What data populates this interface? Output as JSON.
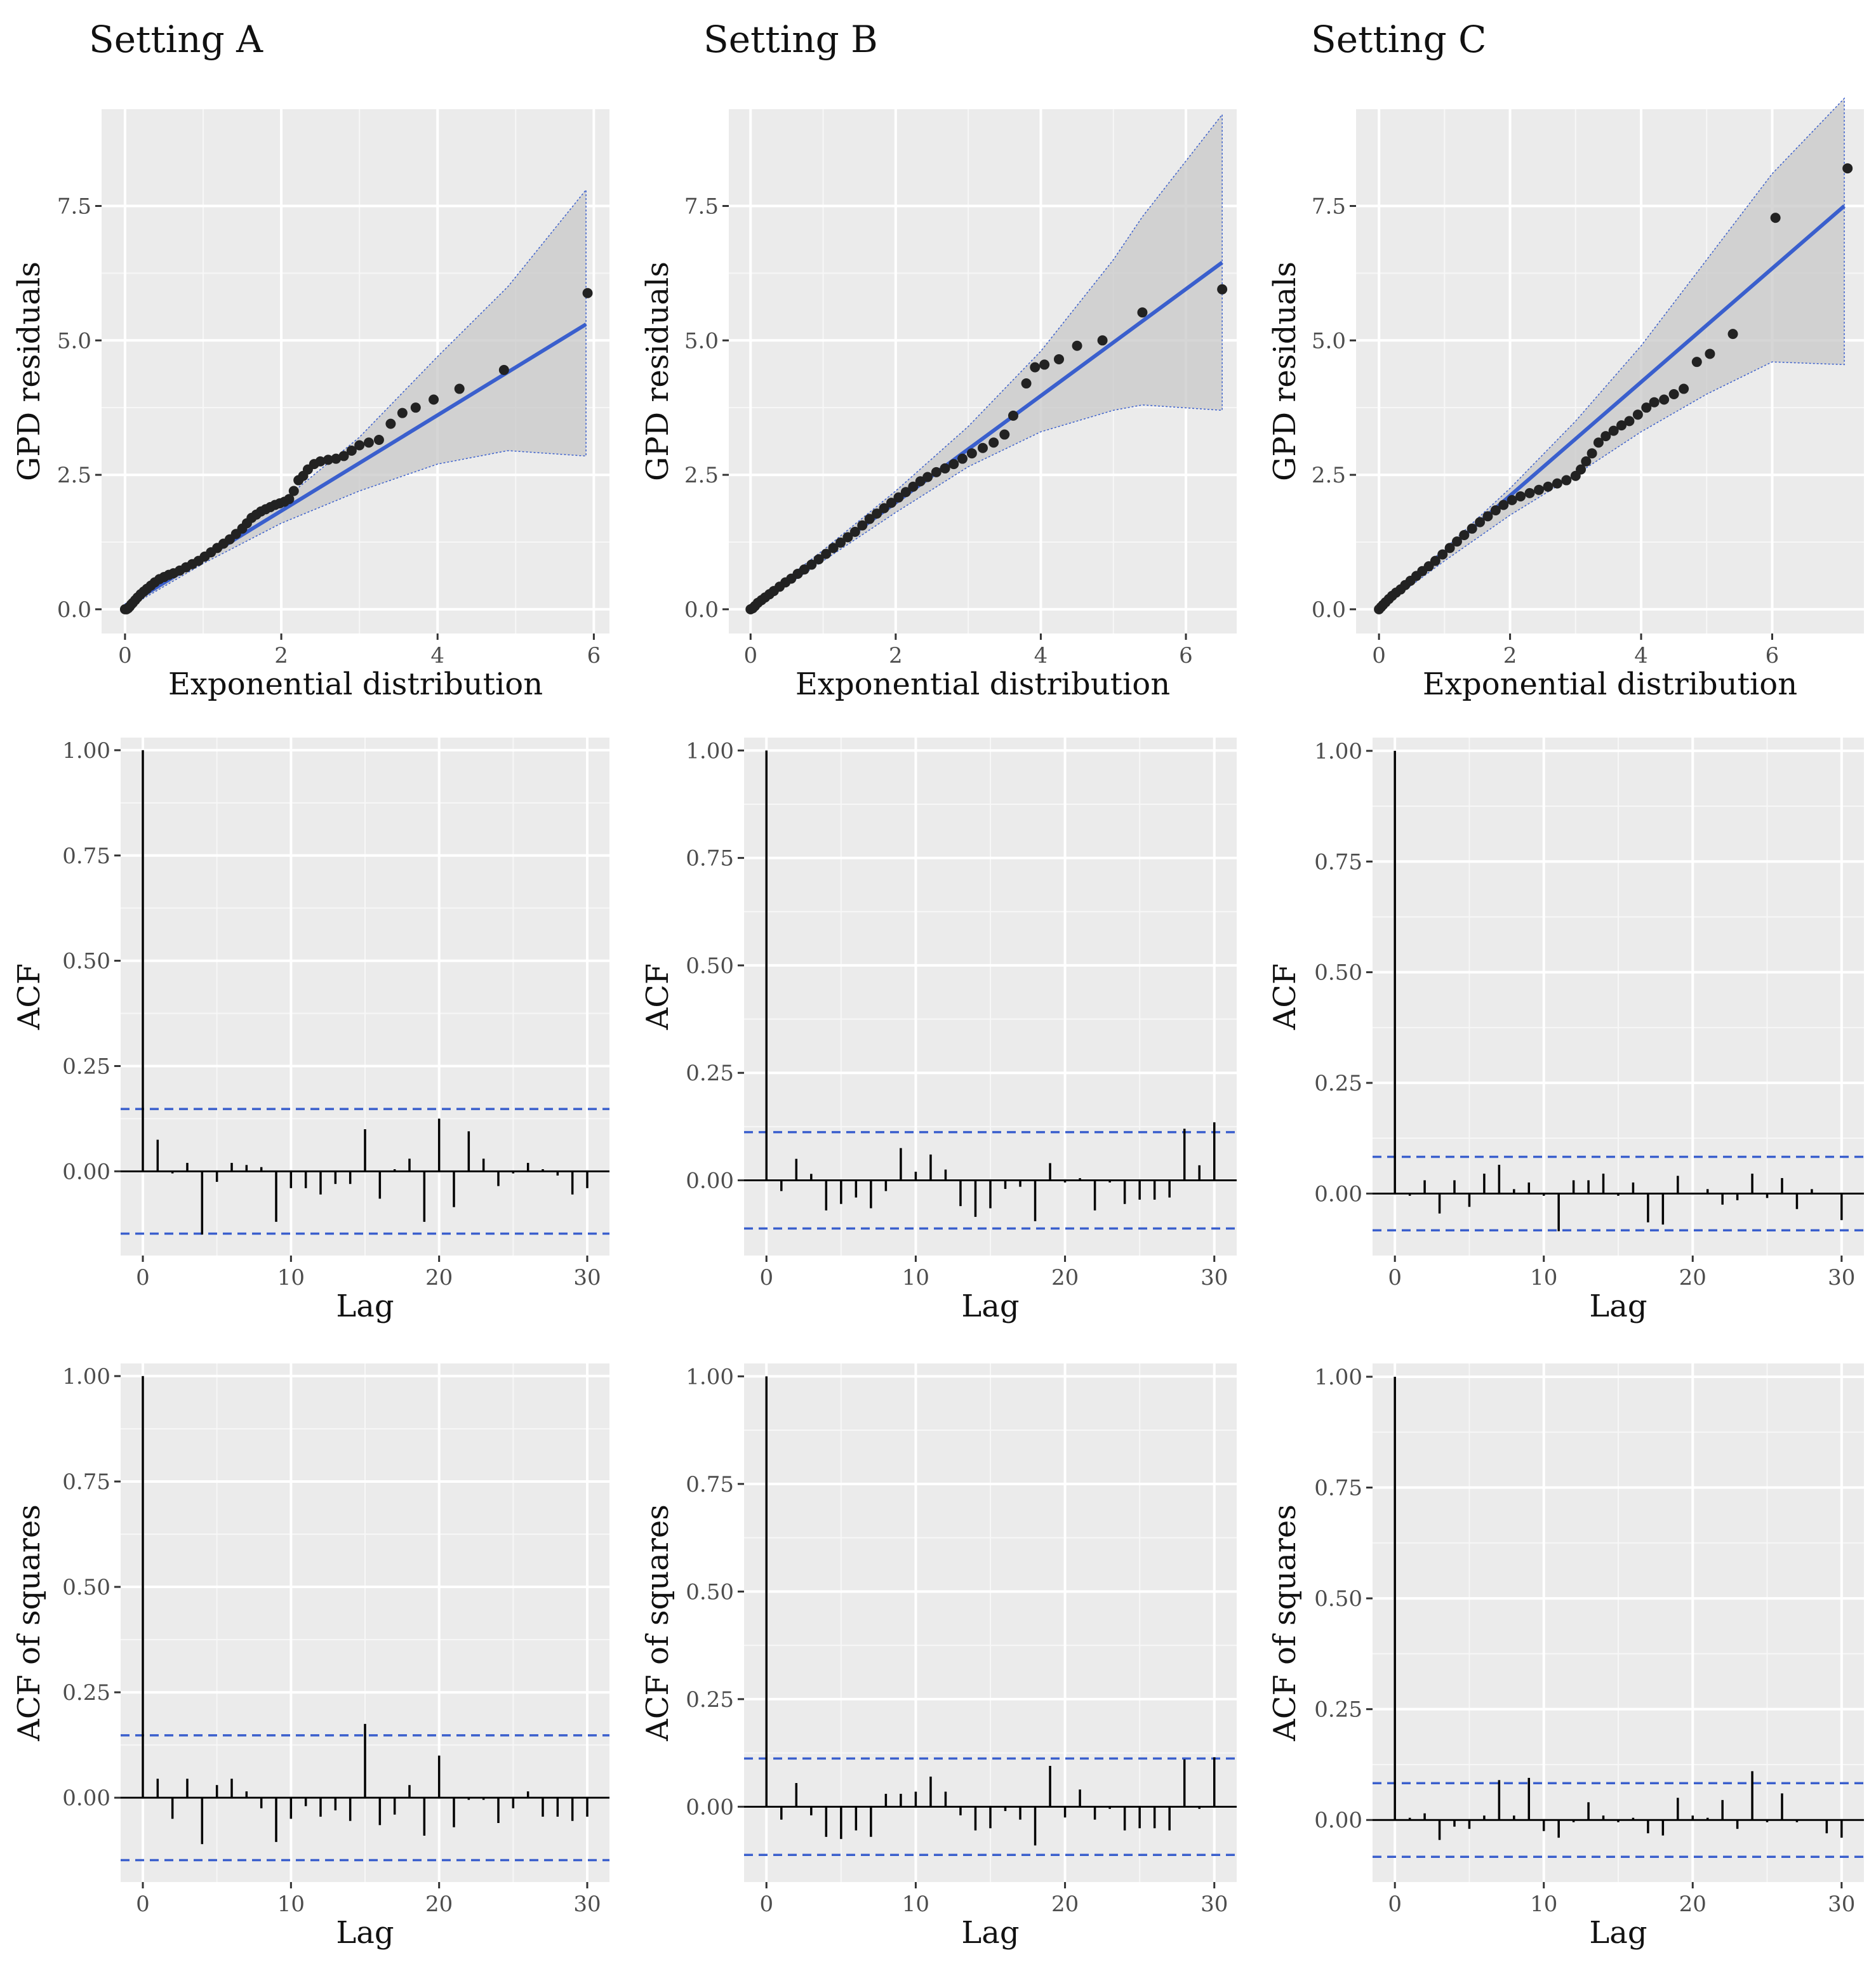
{
  "columns": [
    "Setting A",
    "Setting B",
    "Setting C"
  ],
  "chart_data": [
    {
      "panel": "Setting A — QQ plot",
      "type": "scatter",
      "xlabel": "Exponential distribution",
      "ylabel": "GPD residuals",
      "xlim": [
        -0.3,
        6.2
      ],
      "ylim": [
        -0.45,
        9.3
      ],
      "xticks": [
        0,
        2,
        4,
        6
      ],
      "xtick_labels": [
        "0",
        "2",
        "4",
        "6"
      ],
      "yticks": [
        0,
        2.5,
        5,
        7.5
      ],
      "ytick_labels": [
        "0.0",
        "2.5",
        "5.0",
        "7.5"
      ],
      "fit_line": {
        "x": [
          0,
          5.9
        ],
        "y": [
          0.05,
          5.3
        ]
      },
      "band": {
        "x": [
          0,
          1,
          2,
          3,
          4,
          4.9,
          5.9
        ],
        "lower": [
          0,
          0.85,
          1.6,
          2.2,
          2.7,
          2.95,
          2.85
        ],
        "upper": [
          0.1,
          1.0,
          2.0,
          3.2,
          4.7,
          6.0,
          7.8
        ]
      },
      "points": {
        "x": [
          0.0,
          0.02,
          0.04,
          0.06,
          0.08,
          0.1,
          0.13,
          0.16,
          0.2,
          0.24,
          0.28,
          0.33,
          0.38,
          0.44,
          0.5,
          0.56,
          0.62,
          0.7,
          0.78,
          0.86,
          0.94,
          1.02,
          1.1,
          1.18,
          1.26,
          1.34,
          1.42,
          1.5,
          1.56,
          1.62,
          1.68,
          1.74,
          1.8,
          1.86,
          1.92,
          1.98,
          2.04,
          2.1,
          2.16,
          2.22,
          2.28,
          2.34,
          2.42,
          2.5,
          2.6,
          2.7,
          2.8,
          2.9,
          3.0,
          3.12,
          3.25,
          3.4,
          3.55,
          3.72,
          3.95,
          4.28,
          4.85,
          5.92
        ],
        "y": [
          0.0,
          0.0,
          0.02,
          0.05,
          0.09,
          0.12,
          0.17,
          0.22,
          0.28,
          0.33,
          0.38,
          0.44,
          0.5,
          0.56,
          0.6,
          0.64,
          0.67,
          0.72,
          0.78,
          0.84,
          0.9,
          0.98,
          1.06,
          1.14,
          1.22,
          1.3,
          1.4,
          1.5,
          1.6,
          1.7,
          1.76,
          1.82,
          1.86,
          1.9,
          1.94,
          1.97,
          2.0,
          2.05,
          2.2,
          2.4,
          2.48,
          2.6,
          2.7,
          2.75,
          2.78,
          2.8,
          2.85,
          2.95,
          3.05,
          3.1,
          3.15,
          3.45,
          3.65,
          3.75,
          3.9,
          4.1,
          4.45,
          5.88
        ]
      }
    },
    {
      "panel": "Setting B — QQ plot",
      "type": "scatter",
      "xlabel": "Exponential distribution",
      "ylabel": "GPD residuals",
      "xlim": [
        -0.3,
        6.7
      ],
      "ylim": [
        -0.45,
        9.3
      ],
      "xticks": [
        0,
        2,
        4,
        6
      ],
      "xtick_labels": [
        "0",
        "2",
        "4",
        "6"
      ],
      "yticks": [
        0,
        2.5,
        5,
        7.5
      ],
      "ytick_labels": [
        "0.0",
        "2.5",
        "5.0",
        "7.5"
      ],
      "fit_line": {
        "x": [
          0,
          6.5
        ],
        "y": [
          0.0,
          6.45
        ]
      },
      "band": {
        "x": [
          0,
          1,
          2,
          3,
          4,
          5,
          5.4,
          6.5
        ],
        "lower": [
          0,
          0.9,
          1.8,
          2.65,
          3.3,
          3.7,
          3.8,
          3.7
        ],
        "upper": [
          0.05,
          1.1,
          2.2,
          3.4,
          4.8,
          6.5,
          7.3,
          9.2
        ]
      },
      "points": {
        "x": [
          0.0,
          0.03,
          0.06,
          0.1,
          0.15,
          0.2,
          0.26,
          0.32,
          0.4,
          0.48,
          0.56,
          0.65,
          0.74,
          0.84,
          0.94,
          1.04,
          1.14,
          1.24,
          1.34,
          1.44,
          1.54,
          1.64,
          1.74,
          1.84,
          1.94,
          2.04,
          2.14,
          2.24,
          2.34,
          2.44,
          2.56,
          2.68,
          2.8,
          2.92,
          3.05,
          3.2,
          3.35,
          3.5,
          3.62,
          3.8,
          3.92,
          4.05,
          4.25,
          4.5,
          4.85,
          5.4,
          6.5
        ],
        "y": [
          0.0,
          0.02,
          0.06,
          0.12,
          0.17,
          0.22,
          0.28,
          0.34,
          0.42,
          0.5,
          0.57,
          0.66,
          0.74,
          0.83,
          0.93,
          1.03,
          1.14,
          1.24,
          1.34,
          1.44,
          1.56,
          1.68,
          1.78,
          1.88,
          1.98,
          2.08,
          2.18,
          2.28,
          2.38,
          2.46,
          2.55,
          2.62,
          2.7,
          2.8,
          2.9,
          3.0,
          3.1,
          3.25,
          3.6,
          4.2,
          4.5,
          4.55,
          4.65,
          4.9,
          5.0,
          5.52,
          5.95
        ]
      }
    },
    {
      "panel": "Setting C — QQ plot",
      "type": "scatter",
      "xlabel": "Exponential distribution",
      "ylabel": "GPD residuals",
      "xlim": [
        -0.35,
        7.4
      ],
      "ylim": [
        -0.45,
        9.3
      ],
      "xticks": [
        0,
        2,
        4,
        6
      ],
      "xtick_labels": [
        "0",
        "2",
        "4",
        "6"
      ],
      "yticks": [
        0,
        2.5,
        5,
        7.5
      ],
      "ytick_labels": [
        "0.0",
        "2.5",
        "5.0",
        "7.5"
      ],
      "fit_line": {
        "x": [
          0,
          7.1
        ],
        "y": [
          0.0,
          7.5
        ]
      },
      "band": {
        "x": [
          0,
          1,
          2,
          3,
          4,
          5,
          6,
          7.1
        ],
        "lower": [
          0,
          0.9,
          1.75,
          2.5,
          3.3,
          4.0,
          4.6,
          4.55
        ],
        "upper": [
          0.05,
          1.12,
          2.25,
          3.5,
          4.9,
          6.5,
          8.1,
          9.5
        ]
      },
      "points": {
        "x": [
          0.0,
          0.03,
          0.06,
          0.1,
          0.15,
          0.2,
          0.26,
          0.33,
          0.4,
          0.48,
          0.57,
          0.66,
          0.76,
          0.86,
          0.97,
          1.08,
          1.19,
          1.3,
          1.42,
          1.54,
          1.66,
          1.78,
          1.9,
          2.03,
          2.16,
          2.3,
          2.44,
          2.58,
          2.72,
          2.86,
          3.0,
          3.08,
          3.16,
          3.25,
          3.35,
          3.46,
          3.58,
          3.7,
          3.82,
          3.95,
          4.08,
          4.2,
          4.35,
          4.5,
          4.65,
          4.85,
          5.05,
          5.4,
          6.05,
          7.15
        ],
        "y": [
          0.0,
          0.04,
          0.08,
          0.13,
          0.19,
          0.25,
          0.31,
          0.37,
          0.45,
          0.53,
          0.62,
          0.71,
          0.8,
          0.9,
          1.02,
          1.14,
          1.26,
          1.38,
          1.5,
          1.62,
          1.73,
          1.84,
          1.94,
          2.03,
          2.1,
          2.16,
          2.22,
          2.28,
          2.34,
          2.4,
          2.48,
          2.6,
          2.75,
          2.9,
          3.1,
          3.22,
          3.32,
          3.42,
          3.5,
          3.62,
          3.75,
          3.85,
          3.9,
          4.0,
          4.1,
          4.6,
          4.75,
          5.12,
          7.28,
          8.2
        ]
      }
    },
    {
      "panel": "Setting A — ACF",
      "type": "bar",
      "xlabel": "Lag",
      "ylabel": "ACF",
      "xlim": [
        -1.5,
        31.5
      ],
      "ylim": [
        -0.2,
        1.03
      ],
      "xticks": [
        0,
        10,
        20,
        30
      ],
      "xtick_labels": [
        "0",
        "10",
        "20",
        "30"
      ],
      "yticks": [
        0,
        0.25,
        0.5,
        0.75,
        1.0
      ],
      "ytick_labels": [
        "0.00",
        "0.25",
        "0.50",
        "0.75",
        "1.00"
      ],
      "ci": 0.148,
      "lags": [
        0,
        1,
        2,
        3,
        4,
        5,
        6,
        7,
        8,
        9,
        10,
        11,
        12,
        13,
        14,
        15,
        16,
        17,
        18,
        19,
        20,
        21,
        22,
        23,
        24,
        25,
        26,
        27,
        28,
        29,
        30
      ],
      "values": [
        1.0,
        0.075,
        -0.005,
        0.02,
        -0.15,
        -0.025,
        0.02,
        0.015,
        0.01,
        -0.12,
        -0.04,
        -0.04,
        -0.055,
        -0.03,
        -0.03,
        0.1,
        -0.065,
        0.005,
        0.03,
        -0.12,
        0.125,
        -0.085,
        0.095,
        0.03,
        -0.035,
        -0.005,
        0.02,
        0.005,
        -0.01,
        -0.055,
        -0.04
      ]
    },
    {
      "panel": "Setting B — ACF",
      "type": "bar",
      "xlabel": "Lag",
      "ylabel": "ACF",
      "xlim": [
        -1.5,
        31.5
      ],
      "ylim": [
        -0.175,
        1.03
      ],
      "xticks": [
        0,
        10,
        20,
        30
      ],
      "xtick_labels": [
        "0",
        "10",
        "20",
        "30"
      ],
      "yticks": [
        0,
        0.25,
        0.5,
        0.75,
        1.0
      ],
      "ytick_labels": [
        "0.00",
        "0.25",
        "0.50",
        "0.75",
        "1.00"
      ],
      "ci": 0.112,
      "lags": [
        0,
        1,
        2,
        3,
        4,
        5,
        6,
        7,
        8,
        9,
        10,
        11,
        12,
        13,
        14,
        15,
        16,
        17,
        18,
        19,
        20,
        21,
        22,
        23,
        24,
        25,
        26,
        27,
        28,
        29,
        30
      ],
      "values": [
        1.0,
        -0.025,
        0.05,
        0.015,
        -0.07,
        -0.055,
        -0.04,
        -0.065,
        -0.025,
        0.075,
        0.02,
        0.06,
        0.025,
        -0.06,
        -0.085,
        -0.065,
        -0.02,
        -0.015,
        -0.095,
        0.04,
        -0.005,
        0.005,
        -0.07,
        -0.005,
        -0.055,
        -0.045,
        -0.045,
        -0.04,
        0.12,
        0.035,
        0.135
      ]
    },
    {
      "panel": "Setting C — ACF",
      "type": "bar",
      "xlabel": "Lag",
      "ylabel": "ACF",
      "xlim": [
        -1.5,
        31.5
      ],
      "ylim": [
        -0.14,
        1.03
      ],
      "xticks": [
        0,
        10,
        20,
        30
      ],
      "xtick_labels": [
        "0",
        "10",
        "20",
        "30"
      ],
      "yticks": [
        0,
        0.25,
        0.5,
        0.75,
        1.0
      ],
      "ytick_labels": [
        "0.00",
        "0.25",
        "0.50",
        "0.75",
        "1.00"
      ],
      "ci": 0.083,
      "lags": [
        0,
        1,
        2,
        3,
        4,
        5,
        6,
        7,
        8,
        9,
        10,
        11,
        12,
        13,
        14,
        15,
        16,
        17,
        18,
        19,
        20,
        21,
        22,
        23,
        24,
        25,
        26,
        27,
        28,
        29,
        30
      ],
      "values": [
        1.0,
        -0.005,
        0.03,
        -0.045,
        0.03,
        -0.03,
        0.045,
        0.065,
        0.01,
        0.025,
        -0.005,
        -0.085,
        0.03,
        0.03,
        0.045,
        -0.005,
        0.025,
        -0.065,
        -0.07,
        0.04,
        0.0,
        0.01,
        -0.025,
        -0.015,
        0.045,
        -0.01,
        0.035,
        -0.035,
        0.01,
        0.0,
        -0.06
      ]
    },
    {
      "panel": "Setting A — ACF of squares",
      "type": "bar",
      "xlabel": "Lag",
      "ylabel": "ACF of squares",
      "xlim": [
        -1.5,
        31.5
      ],
      "ylim": [
        -0.2,
        1.03
      ],
      "xticks": [
        0,
        10,
        20,
        30
      ],
      "xtick_labels": [
        "0",
        "10",
        "20",
        "30"
      ],
      "yticks": [
        0,
        0.25,
        0.5,
        0.75,
        1.0
      ],
      "ytick_labels": [
        "0.00",
        "0.25",
        "0.50",
        "0.75",
        "1.00"
      ],
      "ci": 0.148,
      "lags": [
        0,
        1,
        2,
        3,
        4,
        5,
        6,
        7,
        8,
        9,
        10,
        11,
        12,
        13,
        14,
        15,
        16,
        17,
        18,
        19,
        20,
        21,
        22,
        23,
        24,
        25,
        26,
        27,
        28,
        29,
        30
      ],
      "values": [
        1.0,
        0.045,
        -0.05,
        0.045,
        -0.11,
        0.03,
        0.045,
        0.015,
        -0.025,
        -0.105,
        -0.05,
        -0.02,
        -0.045,
        -0.03,
        -0.055,
        0.175,
        -0.065,
        -0.04,
        0.03,
        -0.09,
        0.1,
        -0.07,
        -0.005,
        -0.005,
        -0.06,
        -0.025,
        0.015,
        -0.045,
        -0.045,
        -0.055,
        -0.045
      ]
    },
    {
      "panel": "Setting B — ACF of squares",
      "type": "bar",
      "xlabel": "Lag",
      "ylabel": "ACF of squares",
      "xlim": [
        -1.5,
        31.5
      ],
      "ylim": [
        -0.175,
        1.03
      ],
      "xticks": [
        0,
        10,
        20,
        30
      ],
      "xtick_labels": [
        "0",
        "10",
        "20",
        "30"
      ],
      "yticks": [
        0,
        0.25,
        0.5,
        0.75,
        1.0
      ],
      "ytick_labels": [
        "0.00",
        "0.25",
        "0.50",
        "0.75",
        "1.00"
      ],
      "ci": 0.112,
      "lags": [
        0,
        1,
        2,
        3,
        4,
        5,
        6,
        7,
        8,
        9,
        10,
        11,
        12,
        13,
        14,
        15,
        16,
        17,
        18,
        19,
        20,
        21,
        22,
        23,
        24,
        25,
        26,
        27,
        28,
        29,
        30
      ],
      "values": [
        1.0,
        -0.03,
        0.055,
        -0.02,
        -0.07,
        -0.075,
        -0.055,
        -0.07,
        0.03,
        0.03,
        0.035,
        0.07,
        0.035,
        -0.02,
        -0.055,
        -0.05,
        -0.01,
        -0.03,
        -0.09,
        0.095,
        -0.025,
        0.04,
        -0.03,
        -0.005,
        -0.055,
        -0.05,
        -0.05,
        -0.055,
        0.11,
        -0.005,
        0.115
      ]
    },
    {
      "panel": "Setting C — ACF of squares",
      "type": "bar",
      "xlabel": "Lag",
      "ylabel": "ACF of squares",
      "xlim": [
        -1.5,
        31.5
      ],
      "ylim": [
        -0.14,
        1.03
      ],
      "xticks": [
        0,
        10,
        20,
        30
      ],
      "xtick_labels": [
        "0",
        "10",
        "20",
        "30"
      ],
      "yticks": [
        0,
        0.25,
        0.5,
        0.75,
        1.0
      ],
      "ytick_labels": [
        "0.00",
        "0.25",
        "0.50",
        "0.75",
        "1.00"
      ],
      "ci": 0.083,
      "lags": [
        0,
        1,
        2,
        3,
        4,
        5,
        6,
        7,
        8,
        9,
        10,
        11,
        12,
        13,
        14,
        15,
        16,
        17,
        18,
        19,
        20,
        21,
        22,
        23,
        24,
        25,
        26,
        27,
        28,
        29,
        30
      ],
      "values": [
        1.0,
        0.005,
        0.015,
        -0.045,
        -0.015,
        -0.02,
        0.01,
        0.09,
        0.01,
        0.095,
        -0.025,
        -0.04,
        -0.005,
        0.04,
        0.01,
        -0.005,
        0.005,
        -0.03,
        -0.035,
        0.05,
        0.01,
        0.005,
        0.045,
        -0.02,
        0.11,
        -0.005,
        0.06,
        -0.005,
        0.0,
        -0.03,
        -0.04
      ]
    }
  ],
  "colors": {
    "panel_background": "#ebebeb",
    "fit_line": "#3a5fcd",
    "ci_line": "#3a5fcd",
    "band_fill": "#c8c8c8",
    "points": "#222222",
    "bars": "#000000"
  }
}
